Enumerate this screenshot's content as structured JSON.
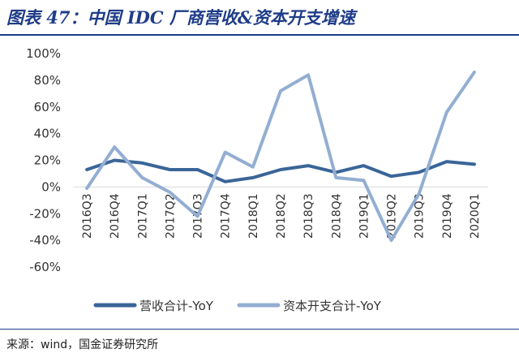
{
  "title": "图表 47：中国 IDC 厂商营收&资本开支增速",
  "source": "来源：wind，国金证券研究所",
  "chart_data": {
    "type": "line",
    "categories": [
      "2016Q3",
      "2016Q4",
      "2017Q1",
      "2017Q2",
      "2017Q3",
      "2017Q4",
      "2018Q1",
      "2018Q2",
      "2018Q3",
      "2018Q4",
      "2019Q1",
      "2019Q2",
      "2019Q3",
      "2019Q4",
      "2020Q1"
    ],
    "y_ticks": [
      "100%",
      "80%",
      "60%",
      "40%",
      "20%",
      "0%",
      "-20%",
      "-40%",
      "-60%"
    ],
    "ylim": [
      -60,
      100
    ],
    "unit": "%",
    "grid": false,
    "legend_position": "bottom",
    "series": [
      {
        "name": "营收合计-YoY",
        "color": "#3a6598",
        "values": [
          13,
          20,
          18,
          13,
          13,
          4,
          7,
          13,
          16,
          11,
          16,
          8,
          11,
          19,
          17
        ]
      },
      {
        "name": "资本开支合计-YoY",
        "color": "#93aed2",
        "values": [
          -1,
          30,
          7,
          -4,
          -22,
          26,
          15,
          72,
          84,
          7,
          5,
          -40,
          -5,
          56,
          86
        ]
      }
    ]
  }
}
